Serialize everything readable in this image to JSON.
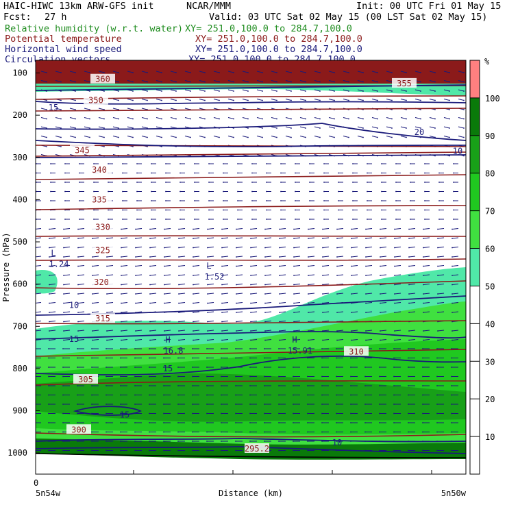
{
  "header": {
    "model_line": "HAIC-HIWC 13km ARW-GFS init",
    "center": "NCAR/MMM",
    "init": "Init: 00 UTC Fri 01 May 15",
    "fcst_label": "Fcst:",
    "fcst_value": "27 h",
    "valid": "Valid: 03 UTC Sat 02 May 15 (00 LST Sat 02 May 15)"
  },
  "legend": [
    {
      "name": "Relative humidity (w.r.t. water)",
      "xy": "XY= 251.0,100.0 to 284.7,100.0",
      "color": "#1e8c1e"
    },
    {
      "name": "Potential temperature",
      "xy": "XY= 251.0,100.0 to 284.7,100.0",
      "color": "#8b1a1a"
    },
    {
      "name": "Horizontal wind speed",
      "xy": "XY= 251.0,100.0 to 284.7,100.0",
      "color": "#1a1a7a"
    },
    {
      "name": "Circulation vectors",
      "xy": "XY= 251.0,100.0 to 284.7,100.0",
      "color": "#1a1a7a"
    }
  ],
  "axes": {
    "ylabel": "Pressure (hPa)",
    "xlabel": "Distance (km)",
    "x_zero": "0",
    "x_left": "5n54w",
    "x_right": "5n50w",
    "yticks": [
      100,
      200,
      300,
      400,
      500,
      600,
      700,
      800,
      900,
      1000
    ]
  },
  "colorbar": {
    "unit": "%",
    "levels": [
      10,
      20,
      30,
      40,
      50,
      60,
      70,
      80,
      90,
      100
    ],
    "colors": [
      "#ffffff",
      "#ffffff",
      "#ffffff",
      "#ffffff",
      "#ffffff",
      "#50e8a8",
      "#40e040",
      "#20c820",
      "#18a018",
      "#0a7a0a",
      "#ff8080"
    ]
  },
  "chart_data": {
    "type": "heatmap",
    "title": "Relative humidity (w.r.t. water) / Potential temperature / Horizontal wind speed / Circulation vectors",
    "xlabel": "Distance (km)",
    "ylabel": "Pressure (hPa)",
    "ylim": [
      1050,
      70
    ],
    "rh_shading_levels": [
      50,
      60,
      70,
      80,
      90,
      100
    ],
    "theta_contours": [
      295,
      300,
      305,
      310,
      315,
      320,
      325,
      330,
      335,
      340,
      345,
      350,
      355,
      360
    ],
    "theta_labels": [
      {
        "text": "360",
        "p": 115
      },
      {
        "text": "355",
        "p": 125
      },
      {
        "text": "350",
        "p": 165
      },
      {
        "text": "345",
        "p": 283
      },
      {
        "text": "340",
        "p": 330
      },
      {
        "text": "335",
        "p": 400
      },
      {
        "text": "330",
        "p": 465
      },
      {
        "text": "325",
        "p": 520
      },
      {
        "text": "320",
        "p": 596
      },
      {
        "text": "315",
        "p": 682
      },
      {
        "text": "310",
        "p": 760
      },
      {
        "text": "305",
        "p": 826
      },
      {
        "text": "300",
        "p": 945
      },
      {
        "text": "295.2",
        "p": 990
      }
    ],
    "wind_labels": [
      {
        "text": "15",
        "p": 182
      },
      {
        "text": "20",
        "p": 240
      },
      {
        "text": "10",
        "p": 285
      },
      {
        "text": "10",
        "p": 650
      },
      {
        "text": "15",
        "p": 730
      },
      {
        "text": "15",
        "p": 800
      },
      {
        "text": "15",
        "p": 910
      },
      {
        "text": "10",
        "p": 975
      }
    ],
    "extrema": [
      {
        "type": "L",
        "value": "1.24",
        "p": 540
      },
      {
        "type": "L",
        "value": "1.52",
        "p": 570
      },
      {
        "type": "H",
        "value": "16.8",
        "p": 745
      },
      {
        "type": "H",
        "value": "15.91",
        "p": 745
      }
    ]
  }
}
